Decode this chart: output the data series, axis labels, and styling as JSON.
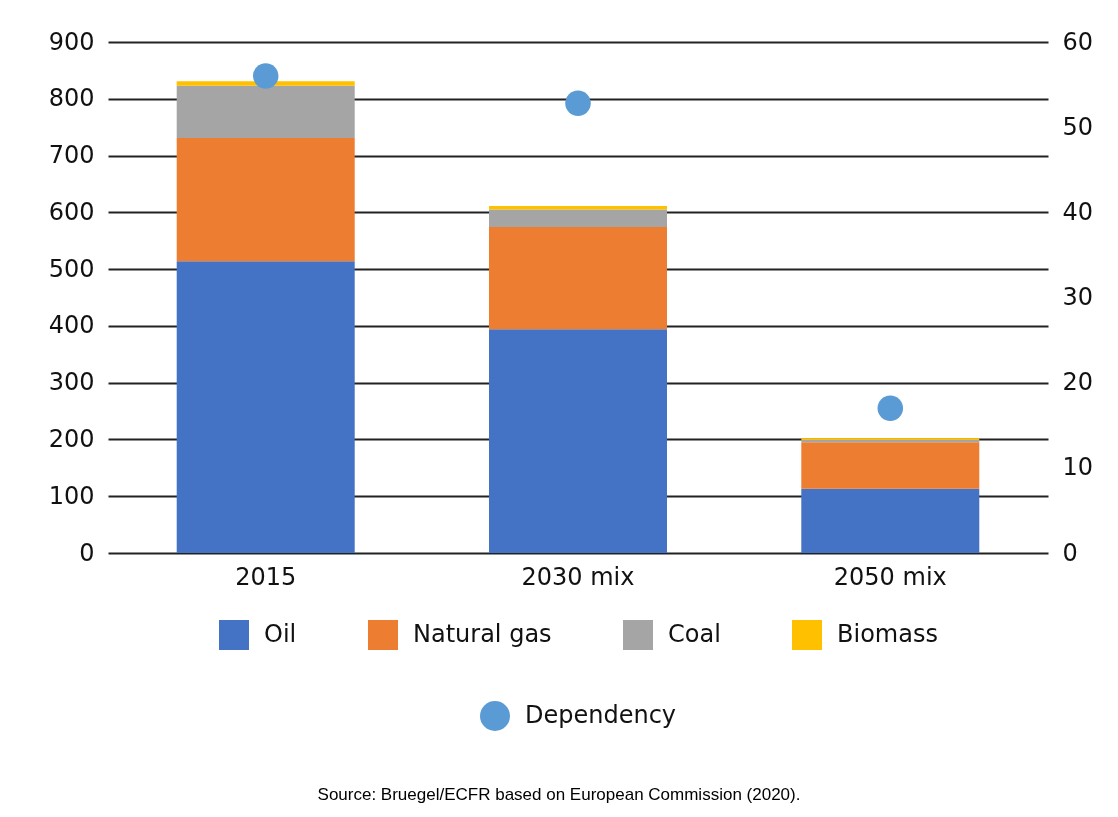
{
  "chart_data": {
    "type": "bar",
    "stacked": true,
    "categories": [
      "2015",
      "2030 mix",
      "2050 mix"
    ],
    "series": [
      {
        "name": "Oil",
        "color": "#4472c4",
        "values": [
          514,
          394,
          113
        ]
      },
      {
        "name": "Natural gas",
        "color": "#ed7d31",
        "values": [
          217,
          180,
          82
        ]
      },
      {
        "name": "Coal",
        "color": "#a5a5a5",
        "values": [
          92,
          31,
          4
        ]
      },
      {
        "name": "Biomass",
        "color": "#ffc000",
        "values": [
          8,
          6,
          3
        ]
      },
      {
        "name": "Dependency",
        "type": "scatter",
        "axis": "y2",
        "marker": "circle",
        "color": "#5b9bd5",
        "values": [
          56,
          52.8,
          17
        ]
      }
    ],
    "ylim": [
      0,
      900
    ],
    "yticks": [
      0,
      100,
      200,
      300,
      400,
      500,
      600,
      700,
      800,
      900
    ],
    "y2lim": [
      0,
      60
    ],
    "y2ticks": [
      0,
      10,
      20,
      30,
      40,
      50,
      60
    ],
    "grid": "y",
    "legend": "bottom",
    "annotations": [
      "Source: Bruegel/ECFR based on European Commission (2020)."
    ]
  }
}
